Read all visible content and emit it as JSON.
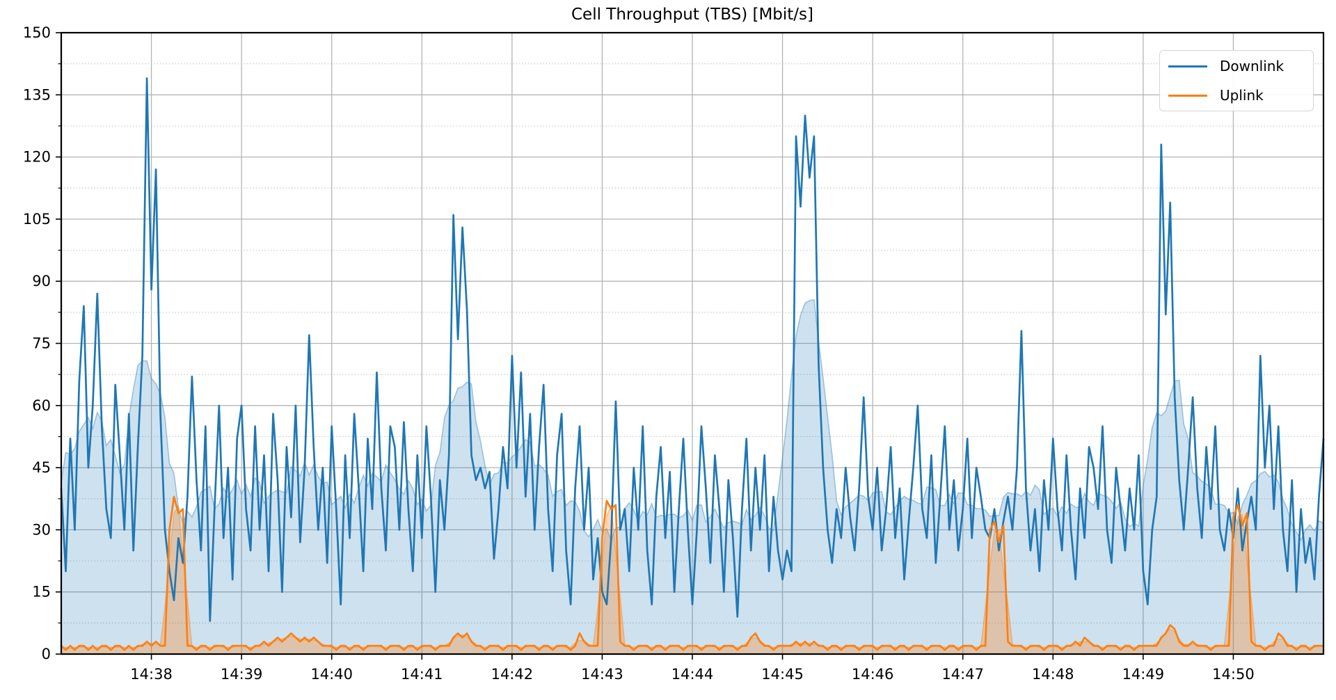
{
  "title": "Cell Throughput (TBS) [Mbit/s]",
  "colors": {
    "downlink": "#1f77b4",
    "uplink": "#ff7f0e",
    "downlink_fill": "rgba(31,119,180,0.22)",
    "downlink_fill_edge": "rgba(31,119,180,0.38)",
    "uplink_fill": "rgba(255,127,14,0.30)",
    "uplink_fill_edge": "rgba(255,127,14,0.45)",
    "grid_major": "#b4b4b4",
    "grid_minor": "#c8c8c8",
    "spine": "#000000",
    "tick_label": "#000000"
  },
  "chart_data": {
    "type": "line",
    "title": "Cell Throughput (TBS) [Mbit/s]",
    "x_start_time": "14:37:00",
    "x_end_time": "14:51:00",
    "sample_interval_s": 3,
    "x_tick_labels": [
      "14:38",
      "14:39",
      "14:40",
      "14:41",
      "14:42",
      "14:43",
      "14:44",
      "14:45",
      "14:46",
      "14:47",
      "14:48",
      "14:49",
      "14:50"
    ],
    "y_ticks": [
      0,
      15,
      30,
      45,
      60,
      75,
      90,
      105,
      120,
      135,
      150
    ],
    "ylim": [
      0,
      150
    ],
    "grid": "horizontal major solid + minor dotted, vertical major solid per minute",
    "legend_position": "upper right",
    "fill_note": "translucent area under smoothed envelope of each line",
    "series": [
      {
        "name": "Downlink",
        "color": "#1f77b4",
        "smooth_window": 9,
        "values": [
          40,
          20,
          52,
          30,
          66,
          84,
          45,
          60,
          87,
          55,
          35,
          28,
          65,
          48,
          30,
          58,
          25,
          50,
          72,
          139,
          88,
          117,
          58,
          30,
          20,
          13,
          28,
          22,
          38,
          67,
          42,
          25,
          55,
          8,
          35,
          60,
          28,
          45,
          18,
          52,
          60,
          35,
          25,
          55,
          30,
          48,
          20,
          58,
          42,
          15,
          50,
          33,
          60,
          27,
          45,
          77,
          50,
          30,
          45,
          22,
          55,
          35,
          12,
          48,
          28,
          58,
          40,
          20,
          52,
          35,
          68,
          40,
          25,
          55,
          50,
          30,
          56,
          35,
          20,
          48,
          28,
          55,
          38,
          15,
          42,
          30,
          48,
          106,
          76,
          103,
          83,
          48,
          42,
          45,
          40,
          44,
          23,
          35,
          50,
          40,
          72,
          45,
          68,
          38,
          58,
          30,
          50,
          65,
          35,
          20,
          48,
          58,
          25,
          12,
          40,
          55,
          30,
          45,
          18,
          28,
          15,
          12,
          28,
          61,
          30,
          35,
          20,
          45,
          30,
          55,
          25,
          12,
          38,
          50,
          28,
          44,
          15,
          35,
          52,
          30,
          12,
          30,
          55,
          40,
          22,
          48,
          35,
          15,
          42,
          28,
          9,
          35,
          52,
          25,
          45,
          30,
          48,
          20,
          38,
          25,
          18,
          25,
          20,
          125,
          108,
          130,
          115,
          125,
          70,
          45,
          30,
          22,
          35,
          28,
          45,
          33,
          25,
          40,
          62,
          38,
          30,
          45,
          25,
          35,
          50,
          28,
          40,
          18,
          32,
          45,
          60,
          35,
          28,
          48,
          22,
          38,
          55,
          30,
          42,
          25,
          35,
          52,
          28,
          45,
          38,
          30,
          28,
          35,
          25,
          32,
          38,
          30,
          45,
          78,
          40,
          25,
          35,
          20,
          42,
          30,
          52,
          35,
          25,
          48,
          30,
          18,
          40,
          28,
          50,
          45,
          35,
          55,
          30,
          22,
          45,
          35,
          25,
          40,
          30,
          48,
          20,
          12,
          30,
          38,
          123,
          82,
          109,
          62,
          42,
          30,
          45,
          62,
          40,
          28,
          50,
          35,
          55,
          30,
          25,
          35,
          28,
          40,
          25,
          32,
          38,
          30,
          72,
          45,
          60,
          35,
          55,
          30,
          20,
          42,
          15,
          35,
          22,
          28,
          18,
          38,
          52
        ]
      },
      {
        "name": "Uplink",
        "color": "#ff7f0e",
        "smooth_window": 3,
        "values": [
          2,
          1,
          2,
          1,
          2,
          2,
          1,
          2,
          1,
          2,
          2,
          1,
          2,
          2,
          1,
          2,
          1,
          2,
          2,
          3,
          2,
          3,
          2,
          2,
          30,
          38,
          34,
          35,
          2,
          2,
          1,
          2,
          2,
          1,
          2,
          2,
          2,
          1,
          2,
          2,
          2,
          2,
          1,
          2,
          2,
          3,
          2,
          3,
          4,
          3,
          4,
          5,
          4,
          3,
          4,
          3,
          4,
          3,
          2,
          2,
          2,
          1,
          2,
          2,
          1,
          2,
          2,
          1,
          2,
          2,
          2,
          2,
          1,
          2,
          2,
          2,
          1,
          2,
          2,
          1,
          2,
          2,
          2,
          1,
          2,
          2,
          2,
          4,
          5,
          4,
          5,
          3,
          2,
          2,
          1,
          2,
          2,
          2,
          1,
          2,
          2,
          2,
          1,
          2,
          2,
          2,
          1,
          2,
          2,
          1,
          2,
          2,
          2,
          1,
          2,
          5,
          3,
          2,
          2,
          2,
          28,
          37,
          35,
          36,
          3,
          2,
          2,
          1,
          2,
          2,
          2,
          1,
          2,
          2,
          1,
          2,
          2,
          2,
          1,
          2,
          2,
          2,
          1,
          2,
          2,
          2,
          1,
          2,
          2,
          2,
          1,
          2,
          2,
          4,
          5,
          3,
          2,
          2,
          1,
          2,
          2,
          2,
          2,
          3,
          2,
          3,
          2,
          3,
          2,
          2,
          1,
          2,
          2,
          1,
          2,
          2,
          2,
          1,
          2,
          2,
          2,
          1,
          2,
          2,
          2,
          1,
          2,
          2,
          1,
          2,
          2,
          2,
          1,
          2,
          2,
          2,
          1,
          2,
          2,
          1,
          2,
          2,
          2,
          1,
          2,
          2,
          30,
          32,
          27,
          31,
          3,
          2,
          2,
          2,
          1,
          2,
          2,
          2,
          1,
          2,
          2,
          2,
          1,
          2,
          2,
          3,
          2,
          4,
          3,
          2,
          2,
          1,
          2,
          2,
          2,
          1,
          2,
          2,
          1,
          2,
          2,
          2,
          2,
          2,
          4,
          5,
          7,
          6,
          3,
          2,
          2,
          3,
          2,
          2,
          2,
          1,
          2,
          2,
          2,
          2,
          33,
          36,
          31,
          34,
          3,
          2,
          2,
          1,
          2,
          2,
          5,
          4,
          2,
          2,
          1,
          2,
          2,
          1,
          2,
          2,
          2
        ]
      }
    ]
  }
}
